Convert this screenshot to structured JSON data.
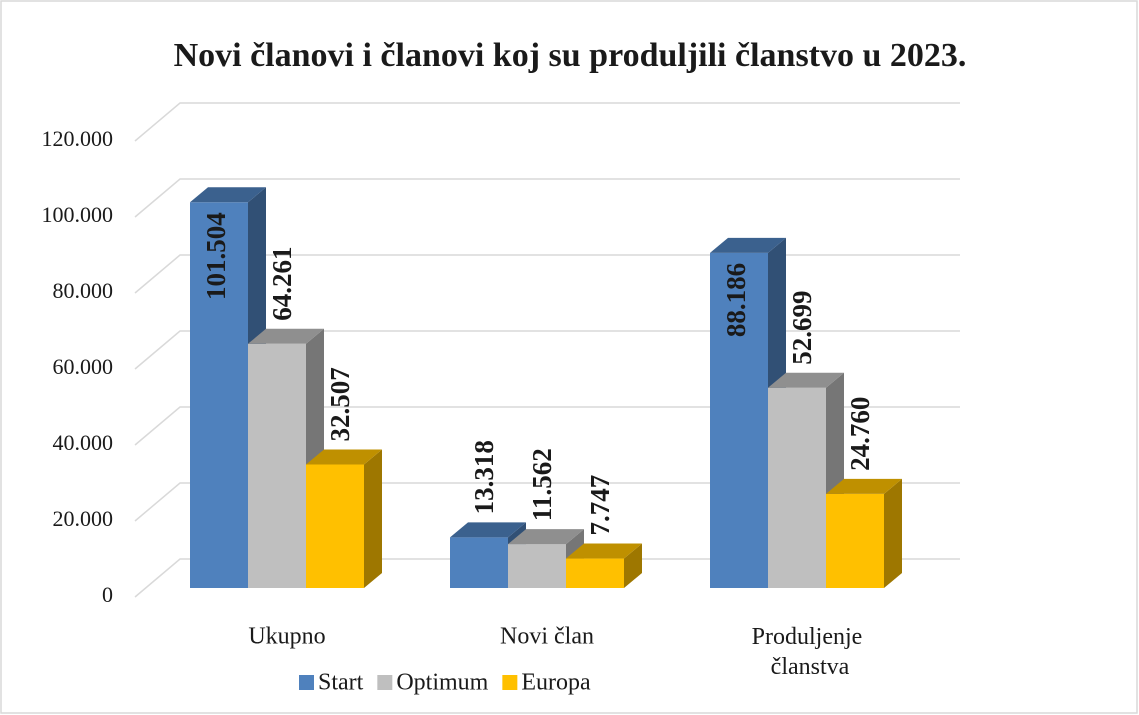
{
  "chart_data": {
    "type": "bar3d",
    "title": "Novi članovi i članovi koj su produljili članstvo u 2023.",
    "categories": [
      "Ukupno",
      "Novi član",
      "Produljenje članstva"
    ],
    "series": [
      {
        "name": "Start",
        "color": "#4f81bd",
        "values": [
          101504,
          13318,
          88186
        ],
        "value_labels": [
          "101.504",
          "13.318",
          "88.186"
        ]
      },
      {
        "name": "Optimum",
        "color": "#bfbfbf",
        "values": [
          64261,
          11562,
          52699
        ],
        "value_labels": [
          "64.261",
          "11.562",
          "52.699"
        ]
      },
      {
        "name": "Europa",
        "color": "#ffc000",
        "values": [
          32507,
          7747,
          24760
        ],
        "value_labels": [
          "32.507",
          "7.747",
          "24.760"
        ]
      }
    ],
    "ylim": [
      0,
      120000
    ],
    "yticks": [
      {
        "value": 0,
        "label": "0"
      },
      {
        "value": 20000,
        "label": "20.000"
      },
      {
        "value": 40000,
        "label": "40.000"
      },
      {
        "value": 60000,
        "label": "60.000"
      },
      {
        "value": 80000,
        "label": "80.000"
      },
      {
        "value": 100000,
        "label": "100.000"
      },
      {
        "value": 120000,
        "label": "120.000"
      }
    ],
    "grid": true,
    "legend": "bottom"
  }
}
